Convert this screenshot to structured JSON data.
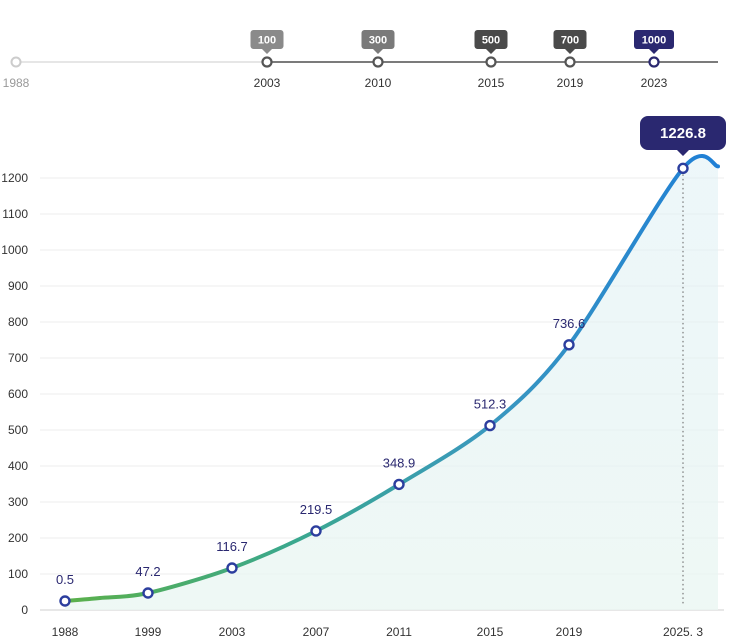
{
  "milestones": {
    "start_year": "1988",
    "items": [
      {
        "badge": "100",
        "year": "2003",
        "color": "#8a8a8a"
      },
      {
        "badge": "300",
        "year": "2010",
        "color": "#7a7a7a"
      },
      {
        "badge": "500",
        "year": "2015",
        "color": "#4a4a4a"
      },
      {
        "badge": "700",
        "year": "2019",
        "color": "#4a4a4a"
      },
      {
        "badge": "1000",
        "year": "2023",
        "color": "#2a2870"
      }
    ]
  },
  "chart_data": {
    "type": "line",
    "ylim": [
      0,
      1200
    ],
    "yticks": [
      "0",
      "100",
      "200",
      "300",
      "400",
      "500",
      "600",
      "700",
      "800",
      "900",
      "1000",
      "1100",
      "1200"
    ],
    "categories": [
      "1988",
      "1999",
      "2003",
      "2007",
      "2011",
      "2015",
      "2019",
      "2025. 3"
    ],
    "points": [
      {
        "x": "1988",
        "y": 0.5,
        "label": "0.5"
      },
      {
        "x": "1999",
        "y": 47.2,
        "label": "47.2"
      },
      {
        "x": "2003",
        "y": 116.7,
        "label": "116.7"
      },
      {
        "x": "2007",
        "y": 219.5,
        "label": "219.5"
      },
      {
        "x": "2011",
        "y": 348.9,
        "label": "348.9"
      },
      {
        "x": "2015",
        "y": 512.3,
        "label": "512.3"
      },
      {
        "x": "2019",
        "y": 736.6,
        "label": "736.6"
      },
      {
        "x": "2025. 3",
        "y": 1226.8,
        "label": "1226.8"
      }
    ],
    "highlight_label": "1226.8",
    "colors": {
      "start": "#5bb04a",
      "middle": "#3aa0a8",
      "end": "#1f7fd6",
      "marker": "#2c3e9e",
      "callout": "#2a2870"
    }
  }
}
